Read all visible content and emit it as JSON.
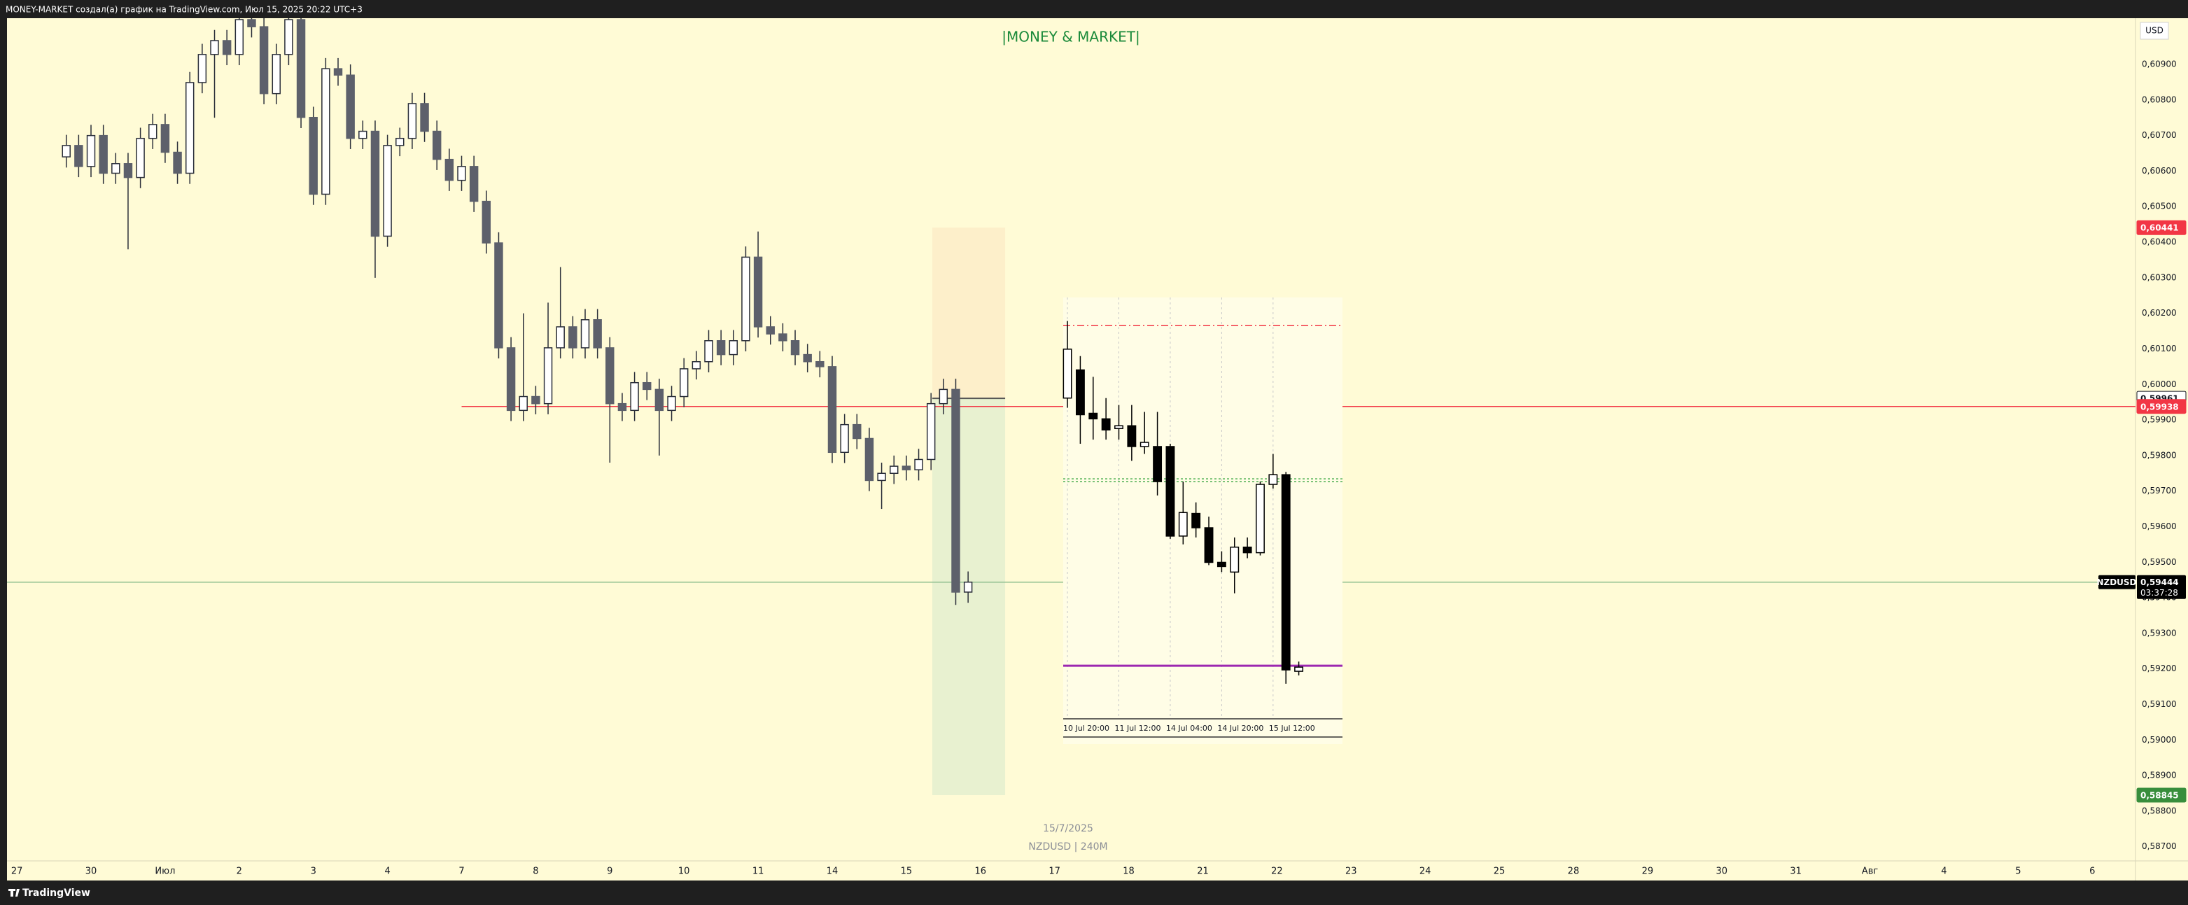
{
  "header": {
    "text": "MONEY-MARKET создал(а) график на TradingView.com, Июл 15, 2025 20:22 UTC+3"
  },
  "footer": {
    "brand": "TradingView"
  },
  "chart_data": [
    {
      "type": "candlestick",
      "title": "|MONEY & MARKET|",
      "currency": "USD",
      "stamp_date": "15/7/2025",
      "stamp_symbol": "NZDUSD | 240M",
      "up_color": "#ffffff",
      "down_color": "#5d606b",
      "wick_color": "#2a2e39",
      "x": [
        4,
        5,
        6,
        7,
        8,
        9,
        10,
        11,
        12,
        13,
        14,
        15,
        16,
        17,
        18,
        19,
        20,
        21,
        22,
        23,
        24,
        25,
        26,
        27,
        28,
        29,
        30,
        31,
        32,
        33,
        34,
        35,
        36,
        37,
        38,
        39,
        40,
        41,
        42,
        43,
        44,
        45,
        46,
        47,
        48,
        49,
        50,
        51,
        52,
        53,
        54,
        55,
        56,
        57,
        58,
        59,
        60,
        61,
        62,
        63,
        64,
        65,
        66,
        67,
        68,
        69,
        70,
        71,
        72,
        73,
        74,
        75,
        76,
        77
      ],
      "open": [
        0.6064,
        0.60672,
        0.60613,
        0.607,
        0.60594,
        0.60621,
        0.60582,
        0.60692,
        0.60731,
        0.60653,
        0.60594,
        0.60849,
        0.60928,
        0.60967,
        0.60928,
        0.61026,
        0.61006,
        0.60818,
        0.60928,
        0.61026,
        0.60751,
        0.60535,
        0.60888,
        0.6087,
        0.60692,
        0.60712,
        0.60417,
        0.60672,
        0.60692,
        0.6079,
        0.60712,
        0.60633,
        0.60574,
        0.60613,
        0.60515,
        0.60398,
        0.60103,
        0.59927,
        0.59966,
        0.59946,
        0.60103,
        0.60162,
        0.60103,
        0.60182,
        0.60103,
        0.59946,
        0.59927,
        0.60005,
        0.59986,
        0.59927,
        0.59966,
        0.60044,
        0.60064,
        0.60123,
        0.60084,
        0.60123,
        0.60358,
        0.60162,
        0.60142,
        0.60123,
        0.60084,
        0.60064,
        0.6005,
        0.59809,
        0.59887,
        0.59848,
        0.5973,
        0.5975,
        0.5977,
        0.5976,
        0.59789,
        0.59946,
        0.59986,
        0.59416
      ],
      "high": [
        0.60702,
        0.60702,
        0.6073,
        0.6073,
        0.60651,
        0.60651,
        0.60722,
        0.60761,
        0.60761,
        0.60683,
        0.60879,
        0.60958,
        0.60997,
        0.60997,
        0.6103,
        0.6103,
        0.6103,
        0.60958,
        0.6103,
        0.6103,
        0.60781,
        0.60918,
        0.60918,
        0.609,
        0.60742,
        0.60742,
        0.60702,
        0.60722,
        0.6082,
        0.6082,
        0.60742,
        0.60663,
        0.60643,
        0.60643,
        0.60545,
        0.60428,
        0.60133,
        0.602,
        0.59996,
        0.6023,
        0.6033,
        0.60192,
        0.60212,
        0.60212,
        0.60133,
        0.59976,
        0.60035,
        0.60035,
        0.60016,
        0.59996,
        0.60074,
        0.60094,
        0.60153,
        0.60153,
        0.60153,
        0.60388,
        0.6043,
        0.60192,
        0.60172,
        0.60153,
        0.60114,
        0.60094,
        0.6008,
        0.59917,
        0.59917,
        0.59878,
        0.5978,
        0.598,
        0.598,
        0.59819,
        0.59976,
        0.60016,
        0.60016,
        0.59474
      ],
      "low": [
        0.6061,
        0.60583,
        0.60583,
        0.60564,
        0.60564,
        0.6038,
        0.60552,
        0.60662,
        0.60623,
        0.60564,
        0.60564,
        0.60819,
        0.6075,
        0.60898,
        0.60898,
        0.60976,
        0.60788,
        0.60788,
        0.60898,
        0.60721,
        0.60505,
        0.60505,
        0.6084,
        0.60662,
        0.60662,
        0.603,
        0.60387,
        0.60642,
        0.60662,
        0.60682,
        0.60603,
        0.60544,
        0.60544,
        0.60485,
        0.60368,
        0.60073,
        0.59897,
        0.59897,
        0.59916,
        0.59916,
        0.60073,
        0.60073,
        0.60073,
        0.60073,
        0.5978,
        0.59897,
        0.59897,
        0.59956,
        0.598,
        0.59897,
        0.59936,
        0.60014,
        0.60034,
        0.60054,
        0.60054,
        0.60093,
        0.60132,
        0.60112,
        0.60093,
        0.60054,
        0.60034,
        0.6002,
        0.59779,
        0.59779,
        0.59818,
        0.597,
        0.5965,
        0.5972,
        0.5973,
        0.5973,
        0.59759,
        0.59916,
        0.5938,
        0.59386
      ],
      "close": [
        0.60672,
        0.60613,
        0.607,
        0.60594,
        0.60621,
        0.60582,
        0.60692,
        0.60731,
        0.60653,
        0.60594,
        0.60849,
        0.60928,
        0.60967,
        0.60928,
        0.61026,
        0.61006,
        0.60818,
        0.60928,
        0.61026,
        0.60751,
        0.60535,
        0.60888,
        0.6087,
        0.60692,
        0.60712,
        0.60417,
        0.60672,
        0.60692,
        0.6079,
        0.60712,
        0.60633,
        0.60574,
        0.60613,
        0.60515,
        0.60398,
        0.60103,
        0.59927,
        0.59966,
        0.59946,
        0.60103,
        0.60162,
        0.60103,
        0.60182,
        0.60103,
        0.59946,
        0.59927,
        0.60005,
        0.59986,
        0.59927,
        0.59966,
        0.60044,
        0.60064,
        0.60123,
        0.60084,
        0.60123,
        0.60358,
        0.60162,
        0.60142,
        0.60123,
        0.60084,
        0.60064,
        0.6005,
        0.59809,
        0.59887,
        0.59848,
        0.5973,
        0.5975,
        0.5977,
        0.5976,
        0.59789,
        0.59946,
        0.59986,
        0.59416,
        0.59444
      ],
      "xlim": [
        -0.8,
        171.5
      ],
      "ylim": [
        0.5866,
        0.6103
      ],
      "xticks": [
        {
          "value": 0,
          "label": "27"
        },
        {
          "value": 6,
          "label": "30"
        },
        {
          "value": 12,
          "label": "Июл"
        },
        {
          "value": 18,
          "label": "2"
        },
        {
          "value": 24,
          "label": "3"
        },
        {
          "value": 30,
          "label": "4"
        },
        {
          "value": 36,
          "label": "7"
        },
        {
          "value": 42,
          "label": "8"
        },
        {
          "value": 48,
          "label": "9"
        },
        {
          "value": 54,
          "label": "10"
        },
        {
          "value": 60,
          "label": "11"
        },
        {
          "value": 66,
          "label": "14"
        },
        {
          "value": 72,
          "label": "15"
        },
        {
          "value": 78,
          "label": "16"
        },
        {
          "value": 84,
          "label": "17"
        },
        {
          "value": 90,
          "label": "18"
        },
        {
          "value": 96,
          "label": "21"
        },
        {
          "value": 102,
          "label": "22"
        },
        {
          "value": 108,
          "label": "23"
        },
        {
          "value": 114,
          "label": "24"
        },
        {
          "value": 120,
          "label": "25"
        },
        {
          "value": 126,
          "label": "28"
        },
        {
          "value": 132,
          "label": "29"
        },
        {
          "value": 138,
          "label": "30"
        },
        {
          "value": 144,
          "label": "31"
        },
        {
          "value": 150,
          "label": "Авг"
        },
        {
          "value": 156,
          "label": "4"
        },
        {
          "value": 162,
          "label": "5"
        },
        {
          "value": 168,
          "label": "6"
        }
      ],
      "yticks": [
        {
          "value": 0.587,
          "label": "0,58700"
        },
        {
          "value": 0.588,
          "label": "0,58800"
        },
        {
          "value": 0.589,
          "label": "0,58900"
        },
        {
          "value": 0.59,
          "label": "0,59000"
        },
        {
          "value": 0.591,
          "label": "0,59100"
        },
        {
          "value": 0.592,
          "label": "0,59200"
        },
        {
          "value": 0.593,
          "label": "0,59300"
        },
        {
          "value": 0.594,
          "label": "0,59400"
        },
        {
          "value": 0.595,
          "label": "0,59500"
        },
        {
          "value": 0.596,
          "label": "0,59600"
        },
        {
          "value": 0.597,
          "label": "0,59700"
        },
        {
          "value": 0.598,
          "label": "0,59800"
        },
        {
          "value": 0.599,
          "label": "0,59900"
        },
        {
          "value": 0.6,
          "label": "0,60000"
        },
        {
          "value": 0.601,
          "label": "0,60100"
        },
        {
          "value": 0.602,
          "label": "0,60200"
        },
        {
          "value": 0.603,
          "label": "0,60300"
        },
        {
          "value": 0.604,
          "label": "0,60400"
        },
        {
          "value": 0.605,
          "label": "0,60500"
        },
        {
          "value": 0.606,
          "label": "0,60600"
        },
        {
          "value": 0.607,
          "label": "0,60700"
        },
        {
          "value": 0.608,
          "label": "0,60800"
        },
        {
          "value": 0.609,
          "label": "0,60900"
        }
      ],
      "position": {
        "x": [
          74.1,
          80
        ],
        "stop": {
          "value": 0.60441,
          "label": "0,60441",
          "color": "#f23645"
        },
        "entry": {
          "value": 0.59961,
          "label": "0,59961",
          "color": "#ffffff"
        },
        "target": {
          "value": 0.58845,
          "label": "0,58845",
          "color": "#388e3c"
        }
      },
      "level": {
        "value": 0.59938,
        "label": "0,59938",
        "x_from": 36,
        "color": "#f23645"
      },
      "last_price": {
        "value": 0.59444,
        "label": "0,59444",
        "symbol": "NZDUSD",
        "countdown": "03:37:28",
        "color": "#000000",
        "line_color": "#8fbf8f"
      }
    },
    {
      "type": "candlestick",
      "up_color": "#ffffff",
      "down_color": "#000000",
      "wick_color": "#000000",
      "x": [
        0,
        1,
        2,
        3,
        4,
        5,
        6,
        7,
        8,
        9,
        10,
        11,
        12,
        13,
        14,
        15,
        16,
        17,
        18
      ],
      "open": [
        0.60029,
        0.6009,
        0.59996,
        0.59984,
        0.59963,
        0.59969,
        0.59924,
        0.59924,
        0.59924,
        0.5973,
        0.59779,
        0.59748,
        0.59673,
        0.59652,
        0.59706,
        0.59694,
        0.59842,
        0.59863,
        0.59437
      ],
      "high": [
        0.60196,
        0.6012,
        0.60075,
        0.60029,
        0.60014,
        0.60014,
        0.59999,
        0.59999,
        0.5993,
        0.59848,
        0.59803,
        0.59772,
        0.59697,
        0.59727,
        0.59727,
        0.59848,
        0.59908,
        0.59869,
        0.59458
      ],
      "low": [
        0.60008,
        0.5993,
        0.59939,
        0.59939,
        0.59939,
        0.59893,
        0.59908,
        0.59818,
        0.59724,
        0.59712,
        0.59727,
        0.59667,
        0.59652,
        0.59606,
        0.59682,
        0.59688,
        0.59833,
        0.5941,
        0.59428
      ],
      "close": [
        0.60135,
        0.59993,
        0.59984,
        0.5996,
        0.59969,
        0.59924,
        0.59933,
        0.59848,
        0.5973,
        0.59781,
        0.59748,
        0.59673,
        0.59664,
        0.59706,
        0.59694,
        0.59842,
        0.59863,
        0.5944,
        0.59446
      ],
      "xlim": [
        -0.33,
        21.4
      ],
      "ylim": [
        0.59334,
        0.60247
      ],
      "xticks": [
        {
          "value": 0,
          "label": "10 Jul 20:00"
        },
        {
          "value": 4,
          "label": "11 Jul 12:00"
        },
        {
          "value": 8,
          "label": "14 Jul 04:00"
        },
        {
          "value": 12,
          "label": "14 Jul 20:00"
        },
        {
          "value": 16,
          "label": "15 Jul 12:00"
        }
      ],
      "levels": [
        {
          "value": 0.60186,
          "color": "#f23645",
          "style": "dashdot"
        },
        {
          "value": 0.59854,
          "color": "#4caf50",
          "style": "dotted"
        },
        {
          "value": 0.59848,
          "color": "#4caf50",
          "style": "dotted"
        },
        {
          "value": 0.59449,
          "color": "#9c27b0",
          "style": "solid"
        }
      ]
    }
  ]
}
